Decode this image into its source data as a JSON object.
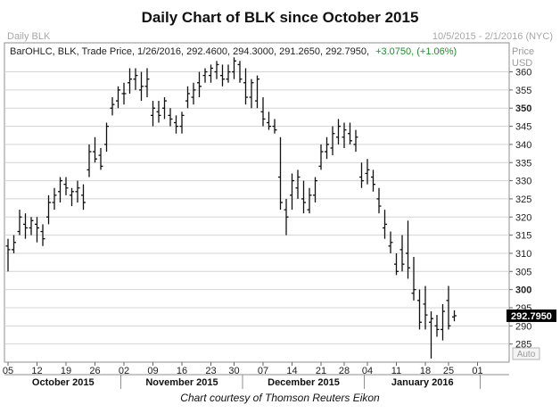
{
  "title": "Daily Chart of BLK since October 2015",
  "header_left": "Daily BLK",
  "header_right": "10/5/2015 - 2/1/2016 (NYC)",
  "info": {
    "text": "BarOHLC, BLK, Trade Price,  1/26/2016, 292.4600, 294.3000, 291.2650, 292.7950,",
    "change": "+3.0750, (+1.06%)"
  },
  "price_axis": {
    "label_1": "Price",
    "label_2": "USD"
  },
  "last_price": "292.7950",
  "auto_label": "Auto",
  "caption": "Chart courtesy of Thomson Reuters Eikon",
  "colors": {
    "bar": "#111111",
    "grid": "#d4d4d4",
    "change": "#1f8f2f",
    "last_price_bg": "#000000"
  },
  "chart_data": {
    "type": "ohlc",
    "ylim": [
      280,
      368
    ],
    "y_ticks": [
      285,
      290,
      295,
      300,
      305,
      310,
      315,
      320,
      325,
      330,
      335,
      340,
      345,
      350,
      355,
      360
    ],
    "x_tick_labels": [
      "05",
      "12",
      "19",
      "26",
      "02",
      "09",
      "16",
      "23",
      "30",
      "07",
      "14",
      "21",
      "28",
      "04",
      "11",
      "18",
      "25",
      "01"
    ],
    "month_labels": [
      "October 2015",
      "November 2015",
      "December 2015",
      "January 2016"
    ],
    "dates": [
      "10/05",
      "10/06",
      "10/07",
      "10/08",
      "10/09",
      "10/12",
      "10/13",
      "10/14",
      "10/15",
      "10/16",
      "10/19",
      "10/20",
      "10/21",
      "10/22",
      "10/23",
      "10/26",
      "10/27",
      "10/28",
      "10/29",
      "10/30",
      "11/02",
      "11/03",
      "11/04",
      "11/05",
      "11/06",
      "11/09",
      "11/10",
      "11/11",
      "11/12",
      "11/13",
      "11/16",
      "11/17",
      "11/18",
      "11/19",
      "11/20",
      "11/23",
      "11/24",
      "11/25",
      "11/27",
      "11/30",
      "12/01",
      "12/02",
      "12/03",
      "12/04",
      "12/07",
      "12/08",
      "12/09",
      "12/10",
      "12/11",
      "12/14",
      "12/15",
      "12/16",
      "12/17",
      "12/18",
      "12/21",
      "12/22",
      "12/23",
      "12/24",
      "12/28",
      "12/29",
      "12/30",
      "12/31",
      "01/04",
      "01/05",
      "01/06",
      "01/07",
      "01/08",
      "01/11",
      "01/12",
      "01/13",
      "01/14",
      "01/15",
      "01/19",
      "01/20",
      "01/21",
      "01/22",
      "01/25",
      "01/26"
    ],
    "ohlc": [
      [
        312,
        314,
        305,
        311
      ],
      [
        311,
        315,
        310,
        313
      ],
      [
        316,
        322,
        315,
        320
      ],
      [
        318,
        321,
        314,
        317
      ],
      [
        317,
        320,
        315,
        319
      ],
      [
        318,
        320,
        313,
        317
      ],
      [
        316,
        318,
        312,
        314
      ],
      [
        320,
        326,
        318,
        324
      ],
      [
        324,
        328,
        322,
        326
      ],
      [
        327,
        331,
        324,
        330
      ],
      [
        329,
        331,
        326,
        328
      ],
      [
        326,
        328,
        323,
        327
      ],
      [
        327,
        330,
        324,
        328
      ],
      [
        326,
        329,
        322,
        324
      ],
      [
        333,
        340,
        331,
        338
      ],
      [
        338,
        342,
        335,
        336
      ],
      [
        337,
        339,
        333,
        334
      ],
      [
        340,
        346,
        338,
        345
      ],
      [
        350,
        353,
        348,
        351
      ],
      [
        352,
        356,
        350,
        355
      ],
      [
        354,
        357,
        351,
        354
      ],
      [
        357,
        361,
        354,
        358
      ],
      [
        358,
        361,
        355,
        359
      ],
      [
        355,
        360,
        352,
        356
      ],
      [
        356,
        361,
        353,
        358
      ],
      [
        348,
        352,
        345,
        350
      ],
      [
        349,
        352,
        346,
        348
      ],
      [
        350,
        353,
        347,
        352
      ],
      [
        348,
        350,
        345,
        347
      ],
      [
        346,
        348,
        343,
        345
      ],
      [
        345,
        349,
        343,
        348
      ],
      [
        352,
        356,
        350,
        354
      ],
      [
        353,
        357,
        351,
        355
      ],
      [
        357,
        360,
        353,
        356
      ],
      [
        359,
        361,
        357,
        360
      ],
      [
        359,
        362,
        357,
        361
      ],
      [
        360,
        363,
        358,
        362
      ],
      [
        359,
        362,
        356,
        358
      ],
      [
        358,
        362,
        357,
        360
      ],
      [
        360,
        364,
        358,
        363
      ],
      [
        362,
        363,
        357,
        358
      ],
      [
        357,
        361,
        351,
        353
      ],
      [
        353,
        358,
        350,
        357
      ],
      [
        352,
        359,
        350,
        358
      ],
      [
        349,
        353,
        345,
        347
      ],
      [
        346,
        349,
        344,
        345
      ],
      [
        345,
        347,
        343,
        344
      ],
      [
        331,
        342,
        322,
        324
      ],
      [
        322,
        325,
        315,
        320
      ],
      [
        326,
        332,
        322,
        330
      ],
      [
        328,
        333,
        325,
        331
      ],
      [
        325,
        330,
        321,
        324
      ],
      [
        322,
        328,
        321,
        326
      ],
      [
        326,
        331,
        324,
        330
      ],
      [
        334,
        340,
        333,
        338
      ],
      [
        338,
        342,
        336,
        340
      ],
      [
        339,
        345,
        337,
        343
      ],
      [
        342,
        347,
        340,
        345
      ],
      [
        342,
        346,
        339,
        344
      ],
      [
        343,
        346,
        340,
        341
      ],
      [
        340,
        344,
        338,
        342
      ],
      [
        331,
        335,
        328,
        330
      ],
      [
        332,
        336,
        329,
        333
      ],
      [
        331,
        333,
        327,
        329
      ],
      [
        325,
        328,
        321,
        323
      ],
      [
        317,
        322,
        314,
        318
      ],
      [
        312,
        316,
        310,
        313
      ],
      [
        307,
        310,
        304,
        305
      ],
      [
        311,
        315,
        305,
        307
      ],
      [
        310,
        319,
        303,
        306
      ],
      [
        299,
        309,
        297,
        300
      ],
      [
        297,
        300,
        289,
        291
      ],
      [
        296,
        301,
        289,
        293
      ],
      [
        291,
        294,
        281,
        292
      ],
      [
        290,
        293,
        287,
        289
      ],
      [
        289,
        296,
        286,
        294
      ],
      [
        297,
        301,
        289,
        290
      ],
      [
        292.46,
        294.3,
        291.265,
        292.795
      ]
    ]
  }
}
